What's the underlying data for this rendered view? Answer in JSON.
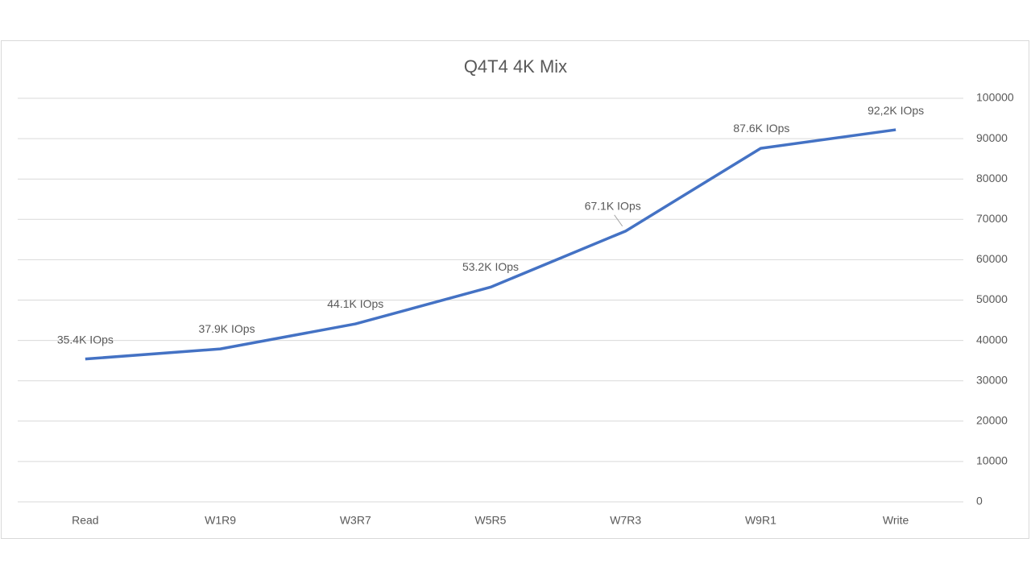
{
  "chart_data": {
    "type": "line",
    "title": "Q4T4 4K Mix",
    "categories": [
      "Read",
      "W1R9",
      "W3R7",
      "W5R5",
      "W7R3",
      "W9R1",
      "Write"
    ],
    "series": [
      {
        "name": "IOps",
        "color": "#4472c4",
        "values": [
          35400,
          37900,
          44100,
          53200,
          67100,
          87600,
          92200
        ],
        "value_labels": [
          "35.4K IOps",
          "37.9K IOps",
          "44.1K IOps",
          "53.2K IOps",
          "67.1K IOps",
          "87.6K IOps",
          "92,2K IOps"
        ]
      }
    ],
    "ylim": [
      0,
      100000
    ],
    "yticks": [
      0,
      10000,
      20000,
      30000,
      40000,
      50000,
      60000,
      70000,
      80000,
      90000,
      100000
    ],
    "grid": true,
    "y_axis_side": "right"
  }
}
